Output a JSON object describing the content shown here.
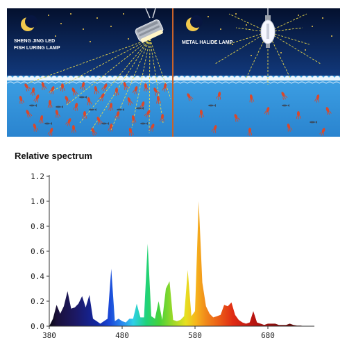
{
  "illustration": {
    "left_label_line1": "SHENG JING LED",
    "left_label_line2": "FISH LURING LAMP",
    "right_label": "METAL HALIDE LAMP",
    "colors": {
      "night_top": "#04102e",
      "night_bottom": "#0f3478",
      "sea": "#2f8fd8",
      "foam": "#ffffff",
      "divider": "#c8622a",
      "fish": "#d9482b",
      "beam": "#e9d84a",
      "moon": "#f1c94d"
    },
    "icons": [
      "moon-icon",
      "led-lamp-icon",
      "metal-halide-lamp-icon",
      "squid-icon",
      "fish-icon",
      "star-icon"
    ]
  },
  "chart_data": {
    "type": "area",
    "title": "Relative spectrum",
    "xlabel": "",
    "ylabel": "",
    "xlim": [
      380,
      740
    ],
    "ylim": [
      0,
      1.2
    ],
    "xticks": [
      380,
      480,
      580,
      680
    ],
    "yticks": [
      "0.0",
      "0.2",
      "0.4",
      "0.6",
      "0.8",
      "1.0",
      "1.2"
    ],
    "grid": false,
    "legend": "none",
    "fill": "wavelength-colored",
    "x": [
      380,
      385,
      390,
      395,
      400,
      405,
      410,
      415,
      420,
      425,
      430,
      435,
      440,
      445,
      450,
      455,
      460,
      465,
      470,
      475,
      480,
      485,
      490,
      495,
      500,
      505,
      510,
      515,
      520,
      525,
      530,
      535,
      540,
      545,
      550,
      555,
      560,
      565,
      570,
      575,
      580,
      585,
      590,
      595,
      600,
      605,
      610,
      615,
      620,
      625,
      630,
      635,
      640,
      645,
      650,
      655,
      660,
      665,
      670,
      675,
      680,
      685,
      690,
      695,
      700,
      705,
      710,
      715,
      720,
      725,
      730
    ],
    "values": [
      0,
      0.06,
      0.17,
      0.1,
      0.16,
      0.28,
      0.14,
      0.15,
      0.18,
      0.24,
      0.15,
      0.25,
      0.06,
      0.04,
      0.02,
      0.04,
      0.06,
      0.46,
      0.04,
      0.06,
      0.04,
      0.03,
      0.06,
      0.06,
      0.18,
      0.07,
      0.07,
      0.66,
      0.08,
      0.06,
      0.2,
      0.05,
      0.3,
      0.36,
      0.05,
      0.04,
      0.05,
      0.08,
      0.45,
      0.08,
      0.12,
      1.0,
      0.35,
      0.16,
      0.1,
      0.07,
      0.08,
      0.09,
      0.17,
      0.16,
      0.19,
      0.09,
      0.05,
      0.03,
      0.02,
      0.03,
      0.12,
      0.03,
      0.02,
      0.01,
      0.02,
      0.02,
      0.02,
      0.01,
      0.01,
      0.01,
      0.02,
      0.01,
      0.005,
      0.005,
      0
    ]
  }
}
